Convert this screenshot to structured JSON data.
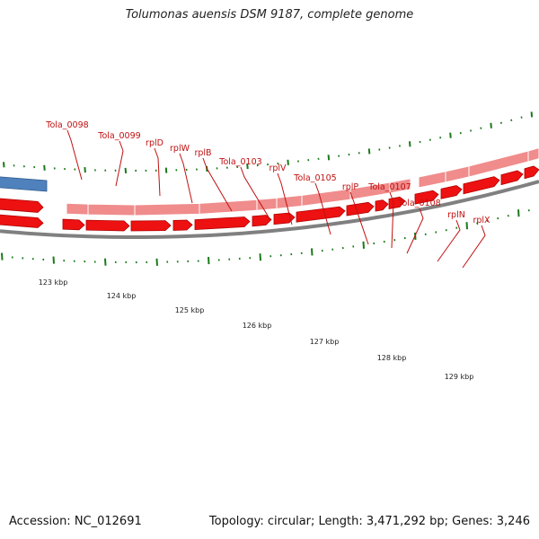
{
  "title": "Tolumonas auensis DSM 9187, complete genome",
  "accession": "Accession: NC_012691",
  "summary": "Topology: circular; Length: 3,471,292 bp; Genes: 3,246",
  "colors": {
    "gene_upper": "#f08c8c",
    "cds_lower": "#ee1111",
    "outer_gene": "#4f81bd",
    "tick": "#1a7a1a",
    "label": "#c01010",
    "backbone": "#808080"
  },
  "kbp_ticks": [
    "123 kbp",
    "124 kbp",
    "125 kbp",
    "126 kbp",
    "127 kbp",
    "128 kbp",
    "129 kbp"
  ],
  "gene_labels": [
    "Tola_0098",
    "Tola_0099",
    "rplD",
    "rplW",
    "rplB",
    "Tola_0103",
    "rplV",
    "Tola_0105",
    "rplP",
    "Tola_0107",
    "Tola_0108",
    "rplN",
    "rplX"
  ]
}
